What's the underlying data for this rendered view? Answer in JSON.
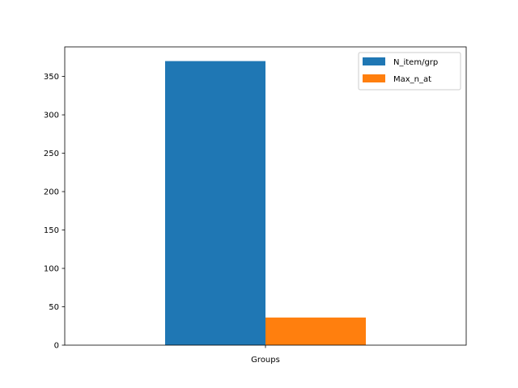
{
  "chart_data": {
    "type": "bar",
    "categories": [
      "Groups"
    ],
    "series": [
      {
        "name": "N_item/grp",
        "values": [
          370
        ],
        "color": "#1f77b4"
      },
      {
        "name": "Max_n_at",
        "values": [
          36
        ],
        "color": "#ff7f0e"
      }
    ],
    "yticks": [
      0,
      50,
      100,
      150,
      200,
      250,
      300,
      350
    ],
    "ylim": [
      0,
      388.5
    ],
    "title": "",
    "xlabel": "",
    "ylabel": "",
    "grid": false,
    "legend_position": "top-right"
  }
}
